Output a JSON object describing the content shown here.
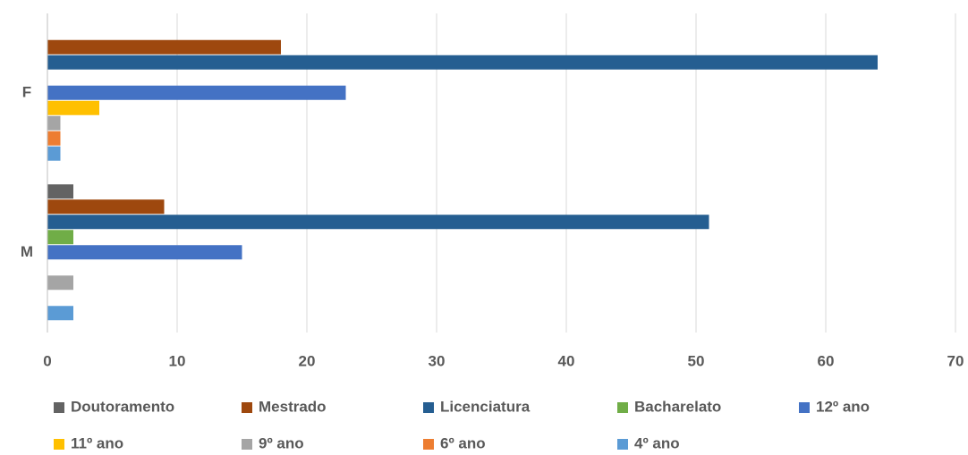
{
  "chart_data": {
    "type": "barh",
    "categories": [
      "F",
      "M"
    ],
    "series": [
      {
        "name": "Doutoramento",
        "color": "#636363",
        "values": [
          0,
          2
        ]
      },
      {
        "name": "Mestrado",
        "color": "#9e480e",
        "values": [
          18,
          9
        ]
      },
      {
        "name": "Licenciatura",
        "color": "#255e91",
        "values": [
          64,
          51
        ]
      },
      {
        "name": "Bacharelato",
        "color": "#70ad47",
        "values": [
          0,
          2
        ]
      },
      {
        "name": "12º ano",
        "color": "#4472c4",
        "values": [
          23,
          15
        ]
      },
      {
        "name": "11º ano",
        "color": "#ffc000",
        "values": [
          4,
          0
        ]
      },
      {
        "name": "9º ano",
        "color": "#a5a5a5",
        "values": [
          1,
          2
        ]
      },
      {
        "name": "6º ano",
        "color": "#ed7d31",
        "values": [
          1,
          0
        ]
      },
      {
        "name": "4º ano",
        "color": "#5b9bd5",
        "values": [
          1,
          2
        ]
      }
    ],
    "xlim": [
      0,
      70
    ],
    "xticks": [
      0,
      10,
      20,
      30,
      40,
      50,
      60,
      70
    ],
    "grid": true,
    "legend": "bottom"
  }
}
